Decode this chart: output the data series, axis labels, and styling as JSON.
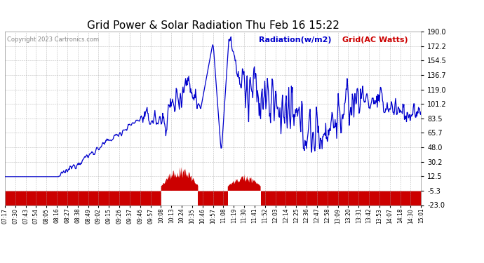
{
  "title": "Grid Power & Solar Radiation Thu Feb 16 15:22",
  "copyright": "Copyright 2023 Cartronics.com",
  "legend_radiation": "Radiation(w/m2)",
  "legend_grid": "Grid(AC Watts)",
  "y_ticks": [
    190.0,
    172.2,
    154.5,
    136.7,
    119.0,
    101.2,
    83.5,
    65.7,
    48.0,
    30.2,
    12.5,
    -5.3,
    -23.0
  ],
  "y_min": -23.0,
  "y_max": 190.0,
  "background_color": "#ffffff",
  "radiation_color": "#0000cc",
  "grid_color": "#cc0000",
  "grid_baseline": -5.3,
  "grid_min": -23.0,
  "title_fontsize": 11,
  "copyright_fontsize": 6,
  "legend_fontsize": 8,
  "tick_labels": [
    "07:17",
    "07:30",
    "07:43",
    "07:54",
    "08:05",
    "08:16",
    "08:27",
    "08:38",
    "08:49",
    "09:02",
    "09:15",
    "09:26",
    "09:37",
    "09:46",
    "09:57",
    "10:08",
    "10:13",
    "10:24",
    "10:35",
    "10:46",
    "10:57",
    "11:08",
    "11:19",
    "11:30",
    "11:41",
    "11:52",
    "12:03",
    "12:14",
    "12:25",
    "12:36",
    "12:47",
    "12:58",
    "13:09",
    "13:20",
    "13:31",
    "13:42",
    "13:53",
    "14:07",
    "14:18",
    "14:30",
    "15:01"
  ],
  "n_points": 800
}
